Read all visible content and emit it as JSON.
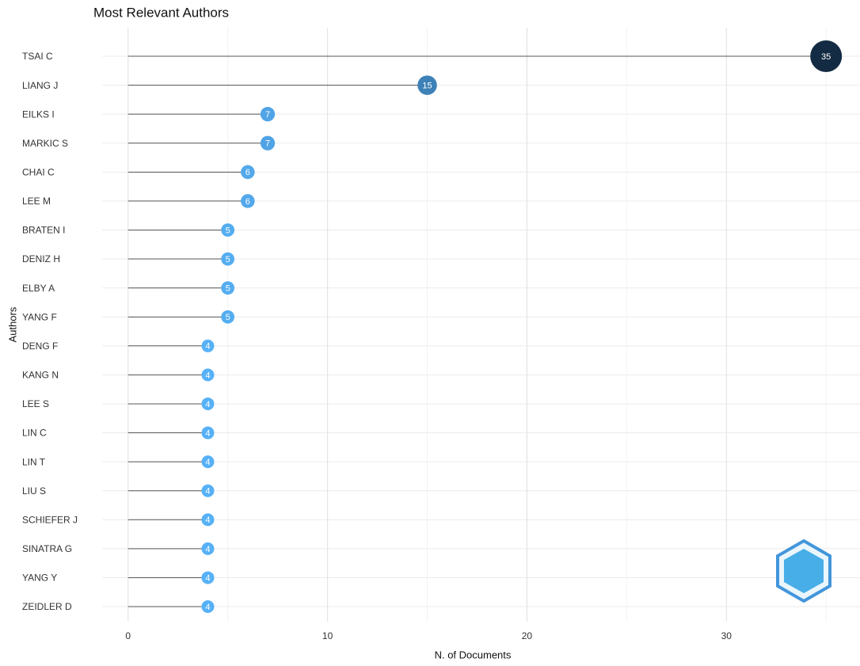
{
  "chart_data": {
    "type": "lollipop",
    "title": "Most Relevant Authors",
    "x_label": "N. of Documents",
    "y_label": "Authors",
    "categories": [
      "TSAI C",
      "LIANG J",
      "EILKS I",
      "MARKIC S",
      "CHAI C",
      "LEE M",
      "BRATEN I",
      "DENIZ H",
      "ELBY A",
      "YANG F",
      "DENG F",
      "KANG N",
      "LEE S",
      "LIN C",
      "LIN T",
      "LIU S",
      "SCHIEFER J",
      "SINATRA G",
      "YANG Y",
      "ZEIDLER D"
    ],
    "values": [
      35,
      15,
      7,
      7,
      6,
      6,
      5,
      5,
      5,
      5,
      4,
      4,
      4,
      4,
      4,
      4,
      4,
      4,
      4,
      4
    ],
    "color_scale": [
      "#56b1f7",
      "#132b43"
    ],
    "xlim": [
      -1.3,
      36.7
    ],
    "xticks": [
      0,
      10,
      20,
      30
    ],
    "xminor": [
      5,
      15,
      25,
      35
    ],
    "grid": true
  }
}
